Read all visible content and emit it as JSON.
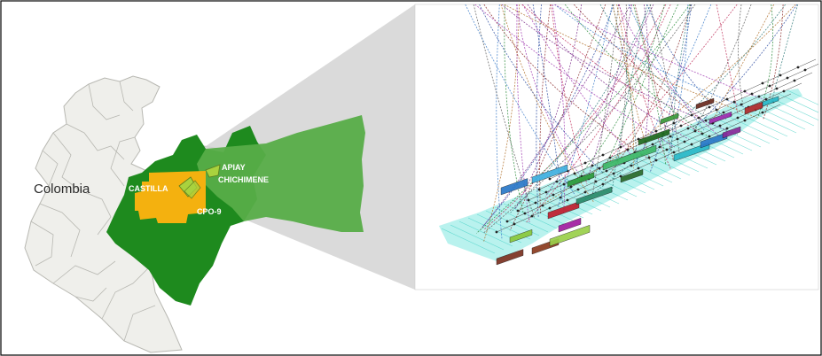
{
  "map": {
    "country_label": "Colombia",
    "fields": [
      {
        "name": "APIAY"
      },
      {
        "name": "CHICHIMENE"
      },
      {
        "name": "CASTILLA"
      },
      {
        "name": "CPO-9"
      }
    ]
  },
  "colors": {
    "frame_border": "#000000",
    "country_fill": "#efefeb",
    "country_stroke": "#b8b8b2",
    "region_green": "#1e8a1e",
    "region_green_light": "#57ad48",
    "castilla_orange": "#f4b10f",
    "field_lime": "#a9d23e",
    "zoom_wedge": "#d4d4d4",
    "reservoir_cyan": "#7fe8e0",
    "label_white": "#ffffff",
    "label_dark": "#2a2a2a"
  },
  "model_3d": {
    "well_trajectories": "multicolor"
  }
}
